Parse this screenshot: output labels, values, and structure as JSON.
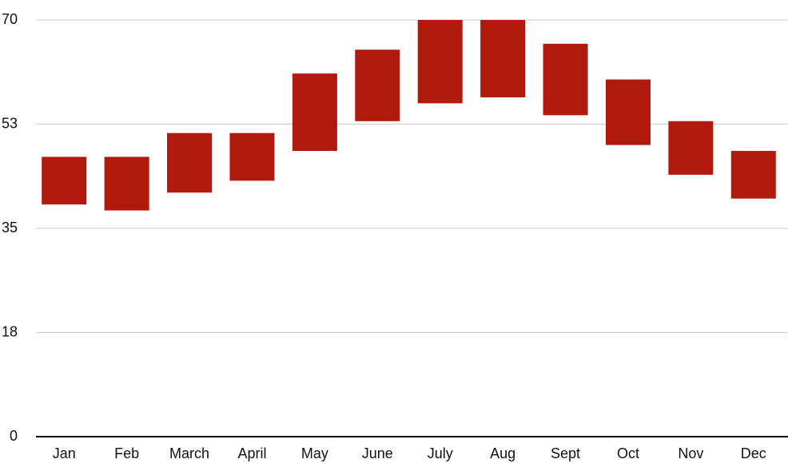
{
  "chart_data": {
    "type": "floating_bar",
    "categories": [
      "Jan",
      "Feb",
      "March",
      "April",
      "May",
      "June",
      "July",
      "Aug",
      "Sept",
      "Oct",
      "Nov",
      "Dec"
    ],
    "lows": [
      39,
      38,
      41,
      43,
      48,
      53,
      56,
      57,
      54,
      49,
      44,
      40
    ],
    "highs": [
      47,
      47,
      51,
      51,
      61,
      65,
      70,
      70,
      66,
      60,
      53,
      48
    ],
    "color": "#b0190c",
    "ylim": [
      0,
      70
    ],
    "yticks": [
      0,
      {
        "value": 17.5,
        "label": "18"
      },
      35,
      {
        "value": 52.5,
        "label": "53"
      },
      70
    ],
    "grid": true
  }
}
